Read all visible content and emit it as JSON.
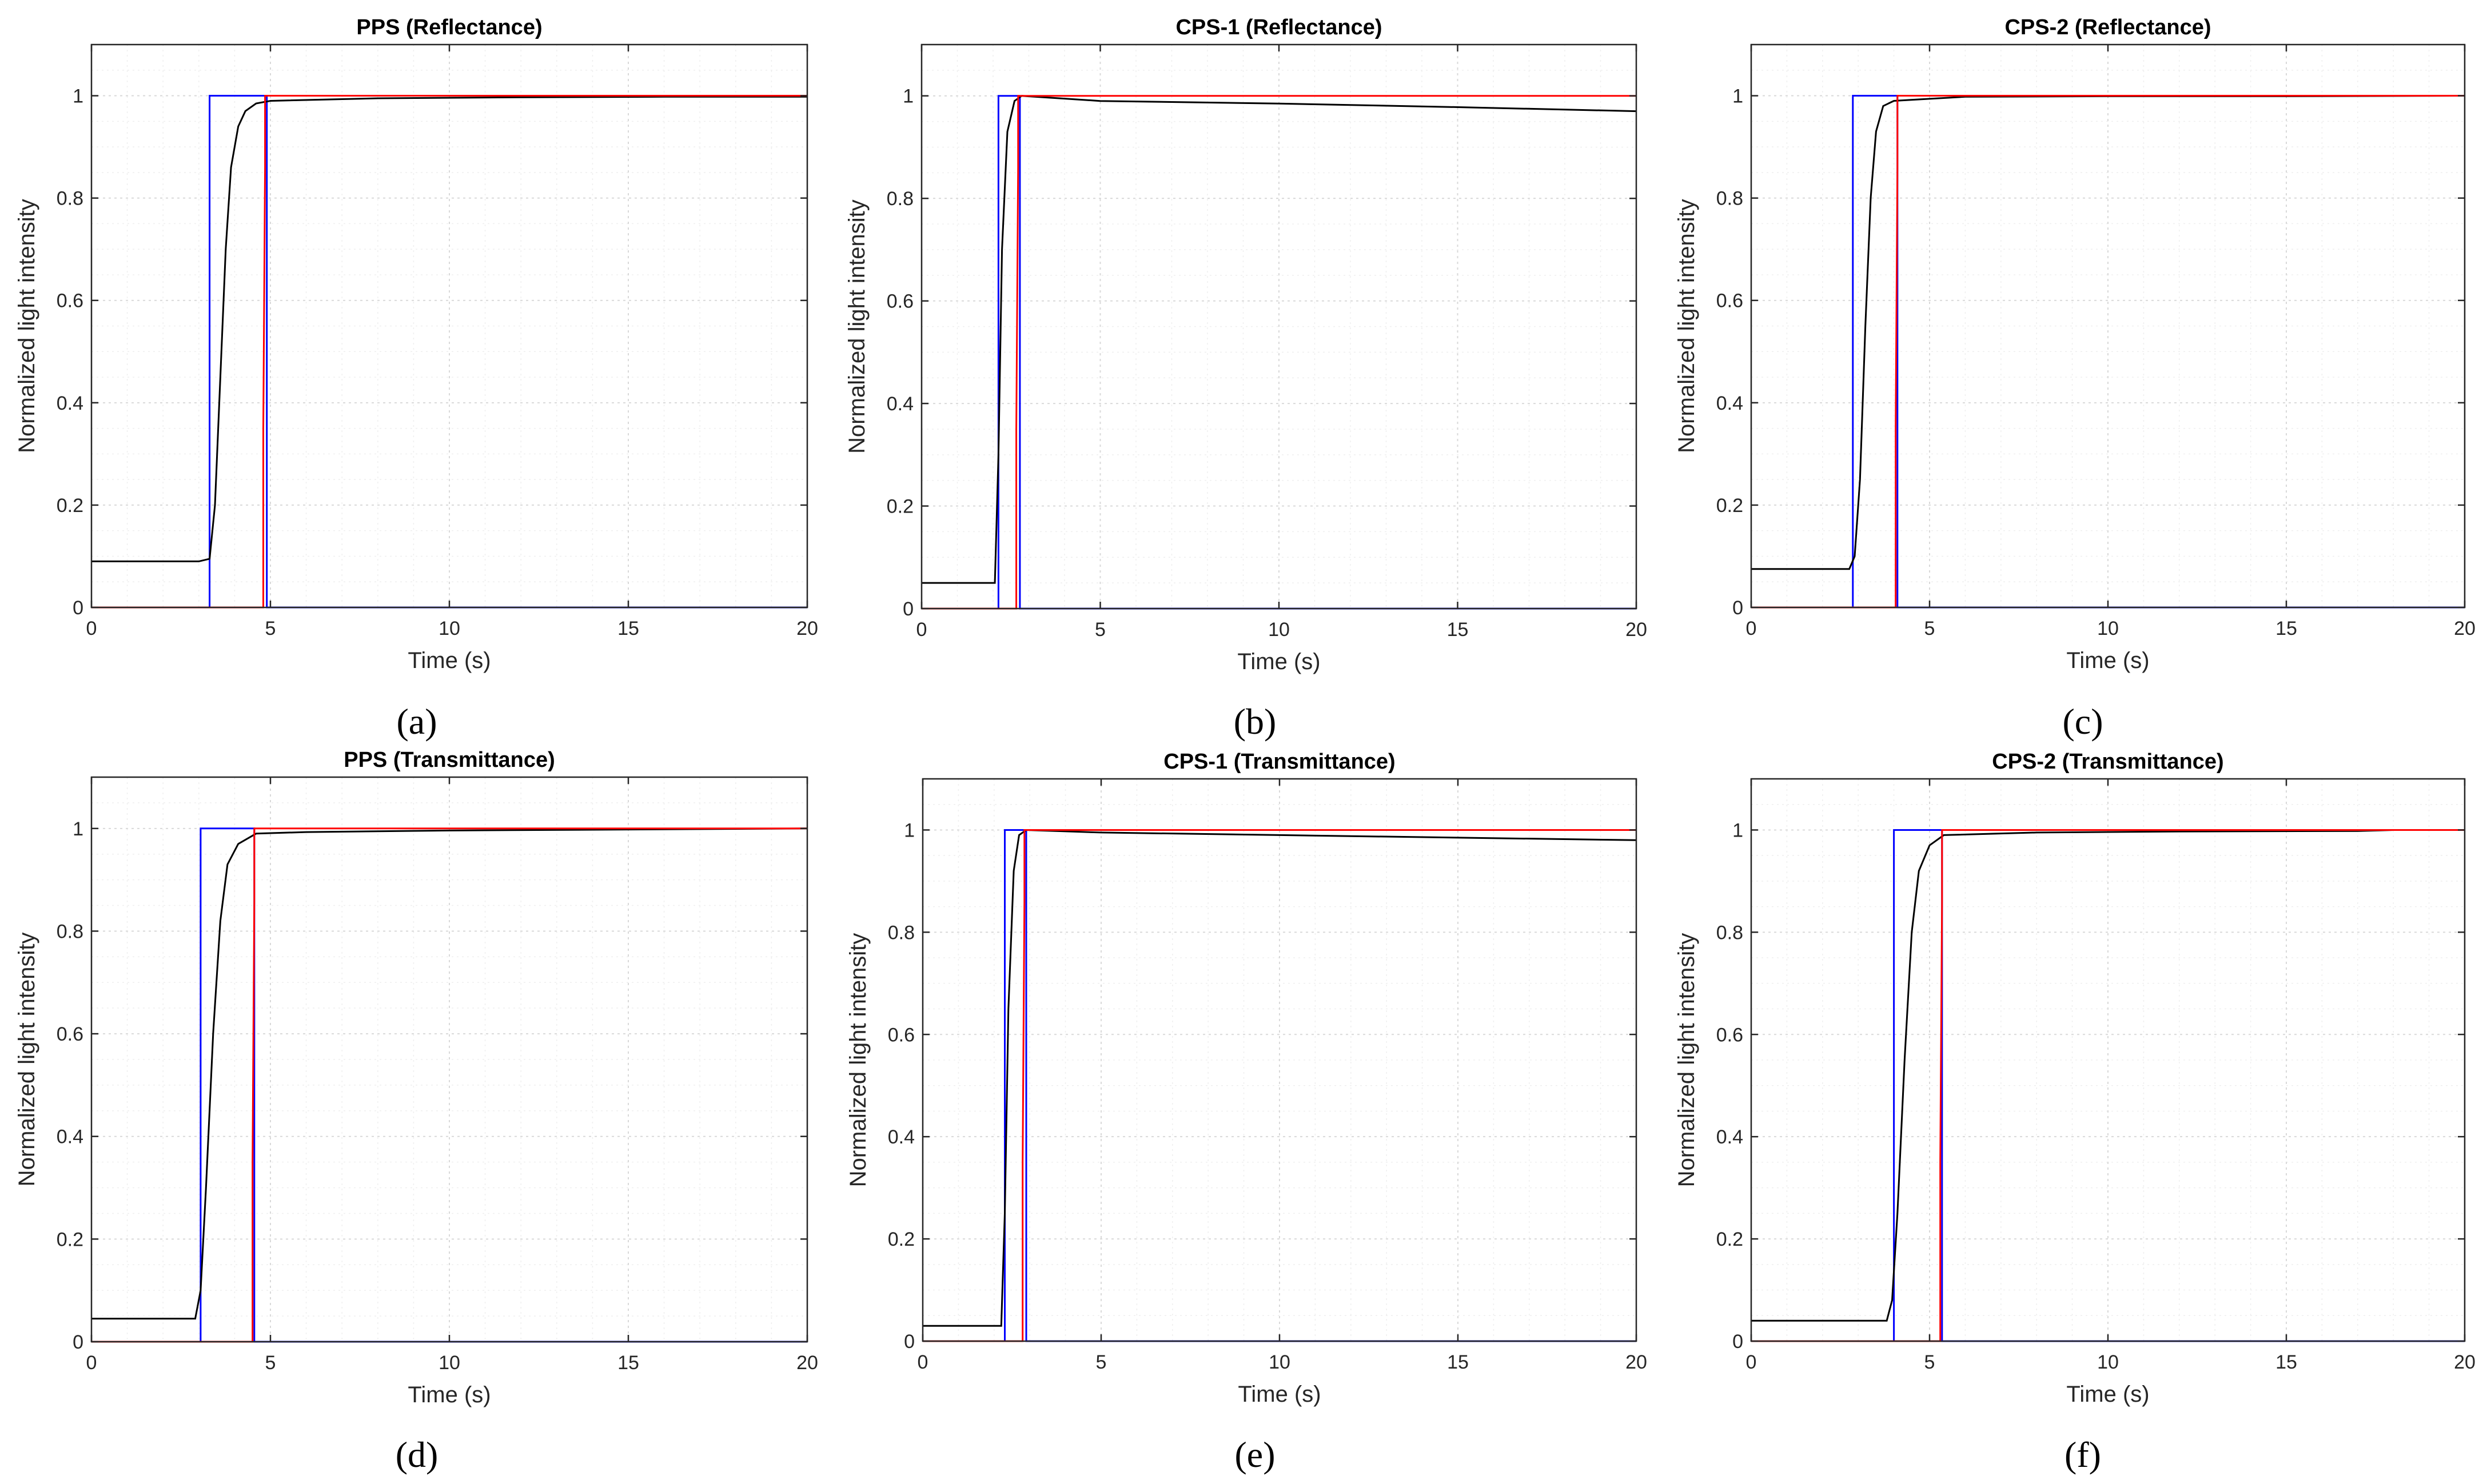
{
  "figure": {
    "panel_labels": [
      "(a)",
      "(b)",
      "(c)",
      "(d)",
      "(e)",
      "(f)"
    ]
  },
  "chart_data": [
    {
      "type": "line",
      "title": "PPS (Reflectance)",
      "xlabel": "Time (s)",
      "ylabel": "Normalized light intensity",
      "xlim": [
        0,
        20
      ],
      "ylim": [
        0,
        1.1
      ],
      "xticks": [
        0,
        5,
        10,
        15,
        20
      ],
      "yticks": [
        0,
        0.2,
        0.4,
        0.6,
        0.8,
        1
      ],
      "grid": true,
      "series": [
        {
          "name": "measured",
          "color": "#000000",
          "x": [
            0,
            3.0,
            3.3,
            3.45,
            3.6,
            3.75,
            3.9,
            4.1,
            4.3,
            4.6,
            5.0,
            8,
            12,
            16,
            20
          ],
          "y": [
            0.09,
            0.09,
            0.095,
            0.2,
            0.45,
            0.7,
            0.86,
            0.94,
            0.97,
            0.985,
            0.99,
            0.995,
            0.997,
            0.998,
            0.998
          ]
        },
        {
          "name": "blue step",
          "color": "#0000ff",
          "x": [
            0,
            3.3,
            3.3,
            4.9,
            4.9,
            20
          ],
          "y": [
            0,
            0,
            1,
            1,
            0,
            0
          ]
        },
        {
          "name": "red response",
          "color": "#ff0000",
          "x": [
            0,
            4.8,
            4.8,
            4.85,
            4.85,
            20
          ],
          "y": [
            0,
            0,
            0.35,
            0.86,
            1,
            1
          ]
        }
      ]
    },
    {
      "type": "line",
      "title": "CPS-1 (Reflectance)",
      "xlabel": "Time (s)",
      "ylabel": "Normalized light intensity",
      "xlim": [
        0,
        20
      ],
      "ylim": [
        0,
        1.1
      ],
      "xticks": [
        0,
        5,
        10,
        15,
        20
      ],
      "yticks": [
        0,
        0.2,
        0.4,
        0.6,
        0.8,
        1
      ],
      "grid": true,
      "series": [
        {
          "name": "measured",
          "color": "#000000",
          "x": [
            0,
            2.05,
            2.15,
            2.25,
            2.4,
            2.6,
            2.8,
            5,
            10,
            15,
            20
          ],
          "y": [
            0.05,
            0.05,
            0.3,
            0.7,
            0.93,
            0.99,
            1.0,
            0.99,
            0.985,
            0.978,
            0.97
          ]
        },
        {
          "name": "blue step",
          "color": "#0000ff",
          "x": [
            0,
            2.15,
            2.15,
            2.75,
            2.75,
            20
          ],
          "y": [
            0,
            0,
            1,
            1,
            0,
            0
          ]
        },
        {
          "name": "red response",
          "color": "#ff0000",
          "x": [
            0,
            2.65,
            2.65,
            2.7,
            2.7,
            20
          ],
          "y": [
            0,
            0,
            0.35,
            0.86,
            1,
            1
          ]
        }
      ]
    },
    {
      "type": "line",
      "title": "CPS-2 (Reflectance)",
      "xlabel": "Time (s)",
      "ylabel": "Normalized light intensity",
      "xlim": [
        0,
        20
      ],
      "ylim": [
        0,
        1.1
      ],
      "xticks": [
        0,
        5,
        10,
        15,
        20
      ],
      "yticks": [
        0,
        0.2,
        0.4,
        0.6,
        0.8,
        1
      ],
      "grid": true,
      "series": [
        {
          "name": "measured",
          "color": "#000000",
          "x": [
            0,
            2.75,
            2.9,
            3.05,
            3.2,
            3.35,
            3.5,
            3.7,
            4.0,
            6,
            10,
            15,
            20
          ],
          "y": [
            0.075,
            0.075,
            0.1,
            0.25,
            0.55,
            0.8,
            0.93,
            0.98,
            0.99,
            0.998,
            0.999,
            0.999,
            1.0
          ]
        },
        {
          "name": "blue step",
          "color": "#0000ff",
          "x": [
            0,
            2.85,
            2.85,
            4.1,
            4.1,
            20
          ],
          "y": [
            0,
            0,
            1,
            1,
            0,
            0
          ]
        },
        {
          "name": "red response",
          "color": "#ff0000",
          "x": [
            0,
            4.05,
            4.05,
            4.1,
            4.1,
            20
          ],
          "y": [
            0,
            0,
            0.35,
            0.86,
            1,
            1
          ]
        }
      ]
    },
    {
      "type": "line",
      "title": "PPS (Transmittance)",
      "xlabel": "Time (s)",
      "ylabel": "Normalized light intensity",
      "xlim": [
        0,
        20
      ],
      "ylim": [
        0,
        1.1
      ],
      "xticks": [
        0,
        5,
        10,
        15,
        20
      ],
      "yticks": [
        0,
        0.2,
        0.4,
        0.6,
        0.8,
        1
      ],
      "grid": true,
      "series": [
        {
          "name": "measured",
          "color": "#000000",
          "x": [
            0,
            2.9,
            3.05,
            3.2,
            3.4,
            3.6,
            3.8,
            4.1,
            4.6,
            6,
            10,
            15,
            20
          ],
          "y": [
            0.045,
            0.045,
            0.1,
            0.3,
            0.6,
            0.82,
            0.93,
            0.97,
            0.99,
            0.993,
            0.996,
            0.998,
            1.0
          ]
        },
        {
          "name": "blue step",
          "color": "#0000ff",
          "x": [
            0,
            3.05,
            3.05,
            4.55,
            4.55,
            20
          ],
          "y": [
            0,
            0,
            1,
            1,
            0,
            0
          ]
        },
        {
          "name": "red response",
          "color": "#ff0000",
          "x": [
            0,
            4.5,
            4.5,
            4.55,
            4.55,
            20
          ],
          "y": [
            0,
            0,
            0.35,
            0.86,
            1,
            1
          ]
        }
      ]
    },
    {
      "type": "line",
      "title": "CPS-1 (Transmittance)",
      "xlabel": "Time (s)",
      "ylabel": "Normalized light intensity",
      "xlim": [
        0,
        20
      ],
      "ylim": [
        0,
        1.1
      ],
      "xticks": [
        0,
        5,
        10,
        15,
        20
      ],
      "yticks": [
        0,
        0.2,
        0.4,
        0.6,
        0.8,
        1
      ],
      "grid": true,
      "series": [
        {
          "name": "measured",
          "color": "#000000",
          "x": [
            0,
            2.2,
            2.3,
            2.4,
            2.55,
            2.7,
            2.9,
            5,
            10,
            15,
            20
          ],
          "y": [
            0.03,
            0.03,
            0.25,
            0.65,
            0.92,
            0.99,
            1.0,
            0.995,
            0.99,
            0.985,
            0.98
          ]
        },
        {
          "name": "blue step",
          "color": "#0000ff",
          "x": [
            0,
            2.3,
            2.3,
            2.9,
            2.9,
            20
          ],
          "y": [
            0,
            0,
            1,
            1,
            0,
            0
          ]
        },
        {
          "name": "red response",
          "color": "#ff0000",
          "x": [
            0,
            2.8,
            2.8,
            2.85,
            2.85,
            20
          ],
          "y": [
            0,
            0,
            0.35,
            0.86,
            1,
            1
          ]
        }
      ]
    },
    {
      "type": "line",
      "title": "CPS-2 (Transmittance)",
      "xlabel": "Time (s)",
      "ylabel": "Normalized light intensity",
      "xlim": [
        0,
        20
      ],
      "ylim": [
        0,
        1.1
      ],
      "xticks": [
        0,
        5,
        10,
        15,
        20
      ],
      "yticks": [
        0,
        0.2,
        0.4,
        0.6,
        0.8,
        1
      ],
      "grid": true,
      "series": [
        {
          "name": "measured",
          "color": "#000000",
          "x": [
            0,
            3.8,
            3.95,
            4.1,
            4.3,
            4.5,
            4.7,
            5.0,
            5.4,
            8,
            12,
            17,
            18
          ],
          "y": [
            0.04,
            0.04,
            0.08,
            0.25,
            0.55,
            0.8,
            0.92,
            0.97,
            0.99,
            0.995,
            0.997,
            0.998,
            1.0
          ]
        },
        {
          "name": "blue step",
          "color": "#0000ff",
          "x": [
            0,
            4.0,
            4.0,
            5.35,
            5.35,
            20
          ],
          "y": [
            0,
            0,
            1,
            1,
            0,
            0
          ]
        },
        {
          "name": "red response",
          "color": "#ff0000",
          "x": [
            0,
            5.3,
            5.3,
            5.35,
            5.35,
            20
          ],
          "y": [
            0,
            0,
            0.35,
            0.86,
            1,
            1
          ]
        }
      ]
    }
  ]
}
